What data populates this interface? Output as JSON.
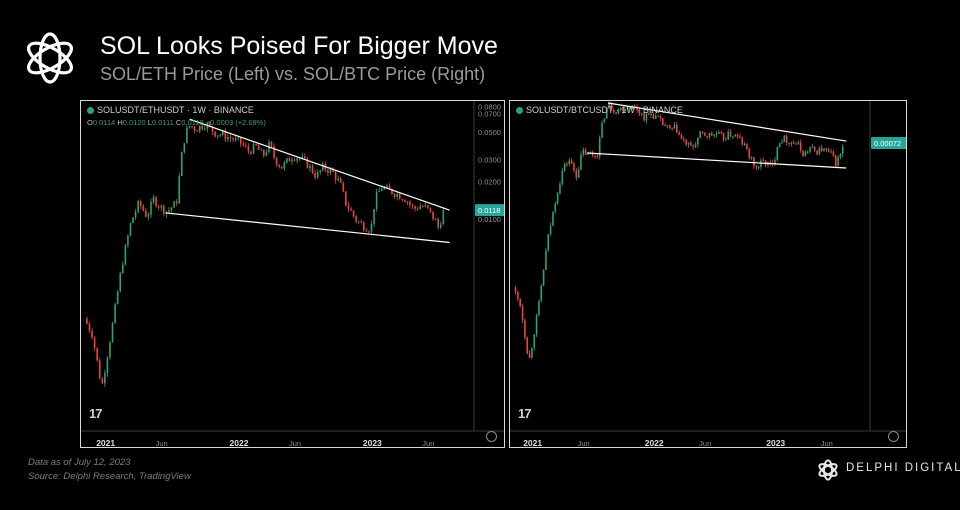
{
  "header": {
    "title": "SOL Looks Poised For Bigger Move",
    "subtitle": "SOL/ETH Price (Left) vs. SOL/BTC Price (Right)"
  },
  "footer": {
    "data_note": "Data as of July 12, 2023",
    "source_note": "Source: Delphi Research, TradingView",
    "brand_name": "DELPHI DIGITAL",
    "tradingview_mark": "17"
  },
  "colors": {
    "up": "#2ea36f",
    "down": "#e8473f",
    "background": "#000000",
    "price_tag": "#26a69a",
    "trendline": "#ffffff"
  },
  "chart_data": [
    {
      "type": "candlestick",
      "symbol_line": "SOLUSDT/ETHUSDT · 1W · BINANCE",
      "ohlc": {
        "o_label": "O",
        "o": "0.0114",
        "h_label": "H",
        "h": "0.0120",
        "l_label": "L",
        "l": "0.0111",
        "c_label": "C",
        "c": "0.0118",
        "change": "+0.0003 (+2.69%)"
      },
      "scale": "log",
      "y_ticks": [
        "0.0800",
        "0.0700",
        "0.0500",
        "0.0300",
        "0.0200",
        "0.0100"
      ],
      "y_tick_values": [
        0.08,
        0.07,
        0.05,
        0.03,
        0.02,
        0.01
      ],
      "ylim": [
        0.00035,
        0.085
      ],
      "current_price": "0.0118",
      "x_ticks": [
        "2021",
        "Jun",
        "2022",
        "Jun",
        "2023",
        "Jun"
      ],
      "x_tick_values": [
        2021.0,
        2021.42,
        2022.0,
        2022.42,
        2023.0,
        2023.42
      ],
      "xlim": [
        2020.83,
        2023.71
      ],
      "path": [
        [
          2020.84,
          0.0016
        ],
        [
          2020.9,
          0.0012
        ],
        [
          2020.97,
          0.00045
        ],
        [
          2021.05,
          0.0014
        ],
        [
          2021.12,
          0.0042
        ],
        [
          2021.19,
          0.0095
        ],
        [
          2021.25,
          0.0135
        ],
        [
          2021.31,
          0.0105
        ],
        [
          2021.36,
          0.0145
        ],
        [
          2021.41,
          0.0125
        ],
        [
          2021.46,
          0.0115
        ],
        [
          2021.53,
          0.0135
        ],
        [
          2021.58,
          0.04
        ],
        [
          2021.62,
          0.056
        ],
        [
          2021.68,
          0.053
        ],
        [
          2021.75,
          0.058
        ],
        [
          2021.82,
          0.049
        ],
        [
          2021.88,
          0.047
        ],
        [
          2021.95,
          0.044
        ],
        [
          2022.01,
          0.041
        ],
        [
          2022.07,
          0.035
        ],
        [
          2022.13,
          0.038
        ],
        [
          2022.18,
          0.032
        ],
        [
          2022.23,
          0.04
        ],
        [
          2022.27,
          0.03
        ],
        [
          2022.32,
          0.026
        ],
        [
          2022.4,
          0.032
        ],
        [
          2022.46,
          0.031
        ],
        [
          2022.52,
          0.027
        ],
        [
          2022.58,
          0.022
        ],
        [
          2022.63,
          0.026
        ],
        [
          2022.7,
          0.024
        ],
        [
          2022.76,
          0.019
        ],
        [
          2022.8,
          0.0135
        ],
        [
          2022.84,
          0.0115
        ],
        [
          2022.88,
          0.0098
        ],
        [
          2022.93,
          0.0089
        ],
        [
          2022.99,
          0.0083
        ],
        [
          2023.02,
          0.0145
        ],
        [
          2023.07,
          0.018
        ],
        [
          2023.12,
          0.017
        ],
        [
          2023.18,
          0.016
        ],
        [
          2023.25,
          0.0145
        ],
        [
          2023.31,
          0.012
        ],
        [
          2023.36,
          0.0128
        ],
        [
          2023.41,
          0.0122
        ],
        [
          2023.45,
          0.0105
        ],
        [
          2023.48,
          0.0095
        ],
        [
          2023.5,
          0.0082
        ],
        [
          2023.52,
          0.0108
        ],
        [
          2023.54,
          0.0118
        ]
      ],
      "trendlines": [
        {
          "points": [
            [
              2021.63,
              0.063
            ],
            [
              2023.58,
              0.0118
            ]
          ]
        },
        {
          "points": [
            [
              2021.45,
              0.0112
            ],
            [
              2023.58,
              0.0065
            ]
          ]
        }
      ]
    },
    {
      "type": "candlestick",
      "symbol_line": "SOLUSDT/BTCUSDT · 1W · BINANCE",
      "scale": "log",
      "current_price": "0.00072",
      "current_price_value": 0.00072,
      "ylim": [
        2.8e-06,
        0.0017
      ],
      "x_ticks": [
        "2021",
        "Jun",
        "2022",
        "Jun",
        "2023",
        "Jun"
      ],
      "x_tick_values": [
        2021.0,
        2021.42,
        2022.0,
        2022.42,
        2023.0,
        2023.42
      ],
      "xlim": [
        2020.83,
        2023.71
      ],
      "path": [
        [
          2020.84,
          3.2e-05
        ],
        [
          2020.9,
          2.2e-05
        ],
        [
          2020.97,
          6.5e-06
        ],
        [
          2021.05,
          2.2e-05
        ],
        [
          2021.12,
          8.5e-05
        ],
        [
          2021.19,
          0.00022
        ],
        [
          2021.25,
          0.00042
        ],
        [
          2021.3,
          0.0005
        ],
        [
          2021.36,
          0.00036
        ],
        [
          2021.41,
          0.0006
        ],
        [
          2021.46,
          0.00056
        ],
        [
          2021.53,
          0.00056
        ],
        [
          2021.58,
          0.0012
        ],
        [
          2021.62,
          0.00165
        ],
        [
          2021.68,
          0.00145
        ],
        [
          2021.73,
          0.0015
        ],
        [
          2021.8,
          0.0016
        ],
        [
          2021.86,
          0.0015
        ],
        [
          2021.92,
          0.00125
        ],
        [
          2021.98,
          0.00135
        ],
        [
          2022.03,
          0.0012
        ],
        [
          2022.08,
          0.00105
        ],
        [
          2022.13,
          0.00095
        ],
        [
          2022.18,
          0.001
        ],
        [
          2022.22,
          0.00078
        ],
        [
          2022.27,
          0.0007
        ],
        [
          2022.31,
          0.00064
        ],
        [
          2022.38,
          0.00086
        ],
        [
          2022.45,
          0.00085
        ],
        [
          2022.52,
          0.00087
        ],
        [
          2022.57,
          0.0008
        ],
        [
          2022.62,
          0.00087
        ],
        [
          2022.67,
          0.00084
        ],
        [
          2022.71,
          0.00076
        ],
        [
          2022.76,
          0.00063
        ],
        [
          2022.79,
          0.00052
        ],
        [
          2022.84,
          0.00042
        ],
        [
          2022.89,
          0.00048
        ],
        [
          2022.94,
          0.00046
        ],
        [
          2022.98,
          0.00043
        ],
        [
          2023.01,
          0.0007
        ],
        [
          2023.06,
          0.0008
        ],
        [
          2023.12,
          0.00074
        ],
        [
          2023.18,
          0.0007
        ],
        [
          2023.23,
          0.00056
        ],
        [
          2023.28,
          0.00064
        ],
        [
          2023.33,
          0.0006
        ],
        [
          2023.38,
          0.00063
        ],
        [
          2023.42,
          0.0006
        ],
        [
          2023.46,
          0.00056
        ],
        [
          2023.49,
          0.00047
        ],
        [
          2023.52,
          0.00052
        ],
        [
          2023.55,
          0.00064
        ],
        [
          2023.57,
          0.00072
        ]
      ],
      "trendlines": [
        {
          "points": [
            [
              2021.62,
              0.0017
            ],
            [
              2023.58,
              0.00075
            ]
          ]
        },
        {
          "points": [
            [
              2021.45,
              0.00058
            ],
            [
              2023.58,
              0.00042
            ]
          ]
        }
      ]
    }
  ]
}
